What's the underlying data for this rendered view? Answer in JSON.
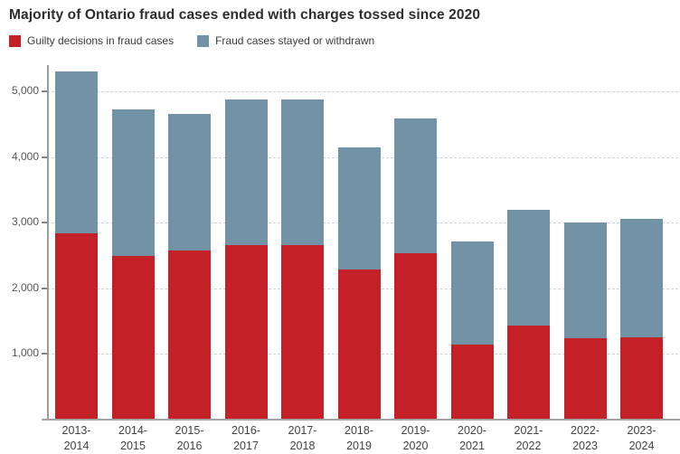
{
  "title": "Majority of Ontario fraud cases ended with charges tossed since 2020",
  "colors": {
    "guilty": "#c32127",
    "stayed": "#7292a6",
    "axis": "#9c9c9c",
    "gridline": "#d2d3da",
    "text": "#2d2d2d"
  },
  "chart_data": {
    "type": "bar",
    "stacked": true,
    "title": "Majority of Ontario fraud cases ended with charges tossed since 2020",
    "xlabel": "",
    "ylabel": "",
    "grid": "horizontal-dashed",
    "legend_position": "top-left",
    "categories": [
      "2013-2014",
      "2014-2015",
      "2015-2016",
      "2016-2017",
      "2017-2018",
      "2018-2019",
      "2019-2020",
      "2020-2021",
      "2021-2022",
      "2022-2023",
      "2023-2024"
    ],
    "series": [
      {
        "name": "Guilty decisions in fraud cases",
        "color": "#c32127",
        "values": [
          2840,
          2490,
          2570,
          2650,
          2660,
          2280,
          2530,
          1140,
          1430,
          1240,
          1250
        ]
      },
      {
        "name": "Fraud cases stayed or withdrawn",
        "color": "#7292a6",
        "values": [
          2470,
          2240,
          2080,
          2230,
          2220,
          1870,
          2060,
          1570,
          1770,
          1760,
          1800
        ]
      }
    ],
    "stack_totals": [
      5310,
      4730,
      4650,
      4880,
      4880,
      4150,
      4590,
      2710,
      3200,
      3000,
      3050
    ],
    "ylim": [
      0,
      5400
    ],
    "yticks": [
      1000,
      2000,
      3000,
      4000,
      5000
    ],
    "ytick_labels": [
      "1,000",
      "2,000",
      "3,000",
      "4,000",
      "5,000"
    ]
  }
}
